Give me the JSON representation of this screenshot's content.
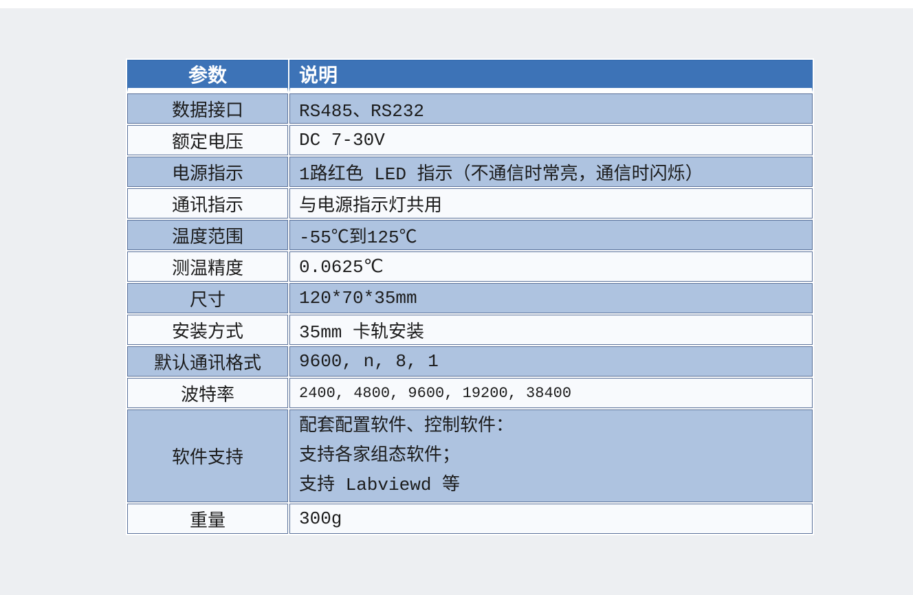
{
  "colors": {
    "page_background": "#edeff2",
    "top_strip": "#ffffff",
    "header_background": "#3d73b7",
    "header_text": "#ffffff",
    "row_blue": "#aec3e0",
    "row_light": "#f8fafd",
    "cell_border": "#597099",
    "body_text": "#1b1b1b"
  },
  "table": {
    "columns": [
      "参数",
      "说明"
    ],
    "rows": [
      {
        "param": "数据接口",
        "value": "RS485、RS232"
      },
      {
        "param": "额定电压",
        "value": "DC 7-30V"
      },
      {
        "param": "电源指示",
        "value": "1路红色 LED 指示（不通信时常亮，通信时闪烁）"
      },
      {
        "param": "通讯指示",
        "value": "与电源指示灯共用"
      },
      {
        "param": "温度范围",
        "value": "-55℃到125℃"
      },
      {
        "param": "测温精度",
        "value": "0.0625℃"
      },
      {
        "param": "尺寸",
        "value": "120*70*35mm"
      },
      {
        "param": "安装方式",
        "value": "35mm 卡轨安装"
      },
      {
        "param": "默认通讯格式",
        "value": "9600, n, 8, 1"
      },
      {
        "param": "波特率",
        "value": "2400, 4800, 9600, 19200, 38400"
      },
      {
        "param": "软件支持",
        "value_lines": [
          "配套配置软件、控制软件：",
          "支持各家组态软件；",
          "支持 Labviewd 等"
        ]
      },
      {
        "param": "重量",
        "value": "300g"
      }
    ]
  }
}
